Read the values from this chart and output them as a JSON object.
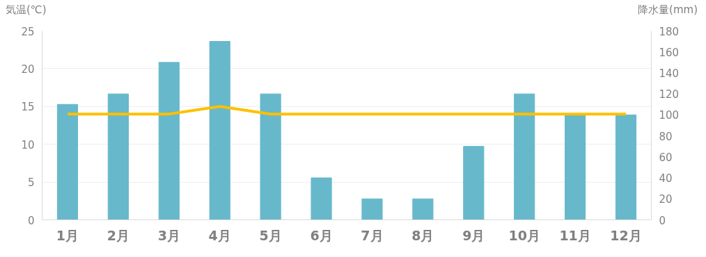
{
  "chart_data": {
    "type": "bar",
    "categories": [
      "1月",
      "2月",
      "3月",
      "4月",
      "5月",
      "6月",
      "7月",
      "8月",
      "9月",
      "10月",
      "11月",
      "12月"
    ],
    "ylabel": "気温(℃)",
    "y2label": "降水量(mm)",
    "ylim": [
      0,
      25
    ],
    "yticks": [
      0,
      5,
      10,
      15,
      20,
      25
    ],
    "y2lim": [
      0,
      180
    ],
    "y2ticks": [
      0,
      20,
      40,
      60,
      80,
      100,
      120,
      140,
      160,
      180
    ],
    "grid": "y",
    "series": [
      {
        "axis": "y2",
        "color": "#67b8cb",
        "values": [
          110,
          120,
          150,
          170,
          120,
          40,
          20,
          20,
          70,
          120,
          100,
          100
        ]
      },
      {
        "type": "line",
        "axis": "y",
        "color": "#ffc000",
        "marker": "none",
        "line_style": "solid",
        "values": [
          14,
          14,
          14,
          15,
          14,
          14,
          14,
          14,
          14,
          14,
          14,
          14
        ]
      }
    ]
  }
}
